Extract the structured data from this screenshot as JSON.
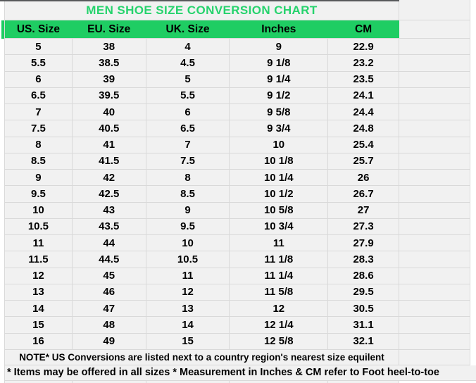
{
  "title": "MEN SHOE SIZE CONVERSION CHART",
  "table": {
    "columns": [
      "US. Size",
      "EU. Size",
      "UK. Size",
      "Inches",
      "CM"
    ],
    "rows": [
      [
        "5",
        "38",
        "4",
        "9",
        "22.9"
      ],
      [
        "5.5",
        "38.5",
        "4.5",
        "9 1/8",
        "23.2"
      ],
      [
        "6",
        "39",
        "5",
        "9 1/4",
        "23.5"
      ],
      [
        "6.5",
        "39.5",
        "5.5",
        "9 1/2",
        "24.1"
      ],
      [
        "7",
        "40",
        "6",
        "9 5/8",
        "24.4"
      ],
      [
        "7.5",
        "40.5",
        "6.5",
        "9 3/4",
        "24.8"
      ],
      [
        "8",
        "41",
        "7",
        "10",
        "25.4"
      ],
      [
        "8.5",
        "41.5",
        "7.5",
        "10 1/8",
        "25.7"
      ],
      [
        "9",
        "42",
        "8",
        "10 1/4",
        "26"
      ],
      [
        "9.5",
        "42.5",
        "8.5",
        "10 1/2",
        "26.7"
      ],
      [
        "10",
        "43",
        "9",
        "10 5/8",
        "27"
      ],
      [
        "10.5",
        "43.5",
        "9.5",
        "10 3/4",
        "27.3"
      ],
      [
        "11",
        "44",
        "10",
        "11",
        "27.9"
      ],
      [
        "11.5",
        "44.5",
        "10.5",
        "11 1/8",
        "28.3"
      ],
      [
        "12",
        "45",
        "11",
        "11 1/4",
        "28.6"
      ],
      [
        "13",
        "46",
        "12",
        "11 5/8",
        "29.5"
      ],
      [
        "14",
        "47",
        "13",
        "12",
        "30.5"
      ],
      [
        "15",
        "48",
        "14",
        "12 1/4",
        "31.1"
      ],
      [
        "16",
        "49",
        "15",
        "12 5/8",
        "32.1"
      ]
    ]
  },
  "notes": {
    "note1": "NOTE* US Conversions are listed next to a country region's nearest size equilent",
    "note2": "* Items may be offered in all sizes * Measurement in Inches & CM refer to Foot heel-to-toe"
  },
  "colors": {
    "header_bg": "#1fcd63",
    "title_text": "#26d36d",
    "cell_bg": "#f1f1f1",
    "gridline": "#d9d9d9",
    "top_bar": "#58595b"
  }
}
